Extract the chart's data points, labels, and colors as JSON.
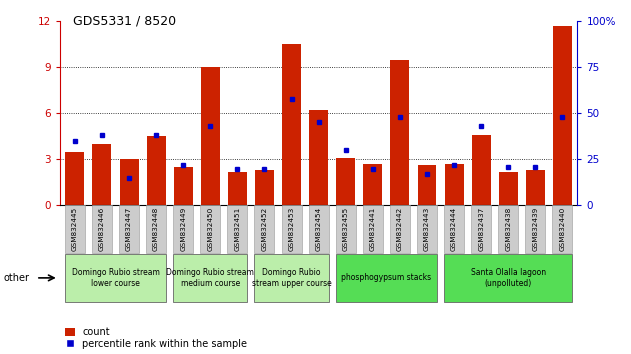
{
  "title": "GDS5331 / 8520",
  "samples": [
    "GSM832445",
    "GSM832446",
    "GSM832447",
    "GSM832448",
    "GSM832449",
    "GSM832450",
    "GSM832451",
    "GSM832452",
    "GSM832453",
    "GSM832454",
    "GSM832455",
    "GSM832441",
    "GSM832442",
    "GSM832443",
    "GSM832444",
    "GSM832437",
    "GSM832438",
    "GSM832439",
    "GSM832440"
  ],
  "count_values": [
    3.5,
    4.0,
    3.0,
    4.5,
    2.5,
    9.0,
    2.2,
    2.3,
    10.5,
    6.2,
    3.1,
    2.7,
    9.5,
    2.6,
    2.7,
    4.6,
    2.2,
    2.3,
    11.7
  ],
  "percentile_values": [
    35,
    38,
    15,
    38,
    22,
    43,
    20,
    20,
    58,
    45,
    30,
    20,
    48,
    17,
    22,
    43,
    21,
    21,
    48
  ],
  "groups": [
    {
      "label": "Domingo Rubio stream\nlower course",
      "start": 0,
      "end": 4,
      "color": "#bbeeaa"
    },
    {
      "label": "Domingo Rubio stream\nmedium course",
      "start": 4,
      "end": 7,
      "color": "#bbeeaa"
    },
    {
      "label": "Domingo Rubio\nstream upper course",
      "start": 7,
      "end": 10,
      "color": "#bbeeaa"
    },
    {
      "label": "phosphogypsum stacks",
      "start": 10,
      "end": 14,
      "color": "#55dd55"
    },
    {
      "label": "Santa Olalla lagoon\n(unpolluted)",
      "start": 14,
      "end": 19,
      "color": "#55dd55"
    }
  ],
  "left_ylim": [
    0,
    12
  ],
  "right_ylim": [
    0,
    100
  ],
  "left_yticks": [
    0,
    3,
    6,
    9,
    12
  ],
  "right_yticks": [
    0,
    25,
    50,
    75,
    100
  ],
  "left_tick_color": "#cc0000",
  "right_tick_color": "#0000cc",
  "bar_color": "#cc2200",
  "dot_color": "#0000cc",
  "background_color": "#ffffff",
  "xtick_bg_color": "#cccccc",
  "grid_color": "#000000",
  "group_border_color": "#666666",
  "legend_labels": [
    "count",
    "percentile rank within the sample"
  ],
  "figure_width": 6.31,
  "figure_height": 3.54,
  "dpi": 100
}
